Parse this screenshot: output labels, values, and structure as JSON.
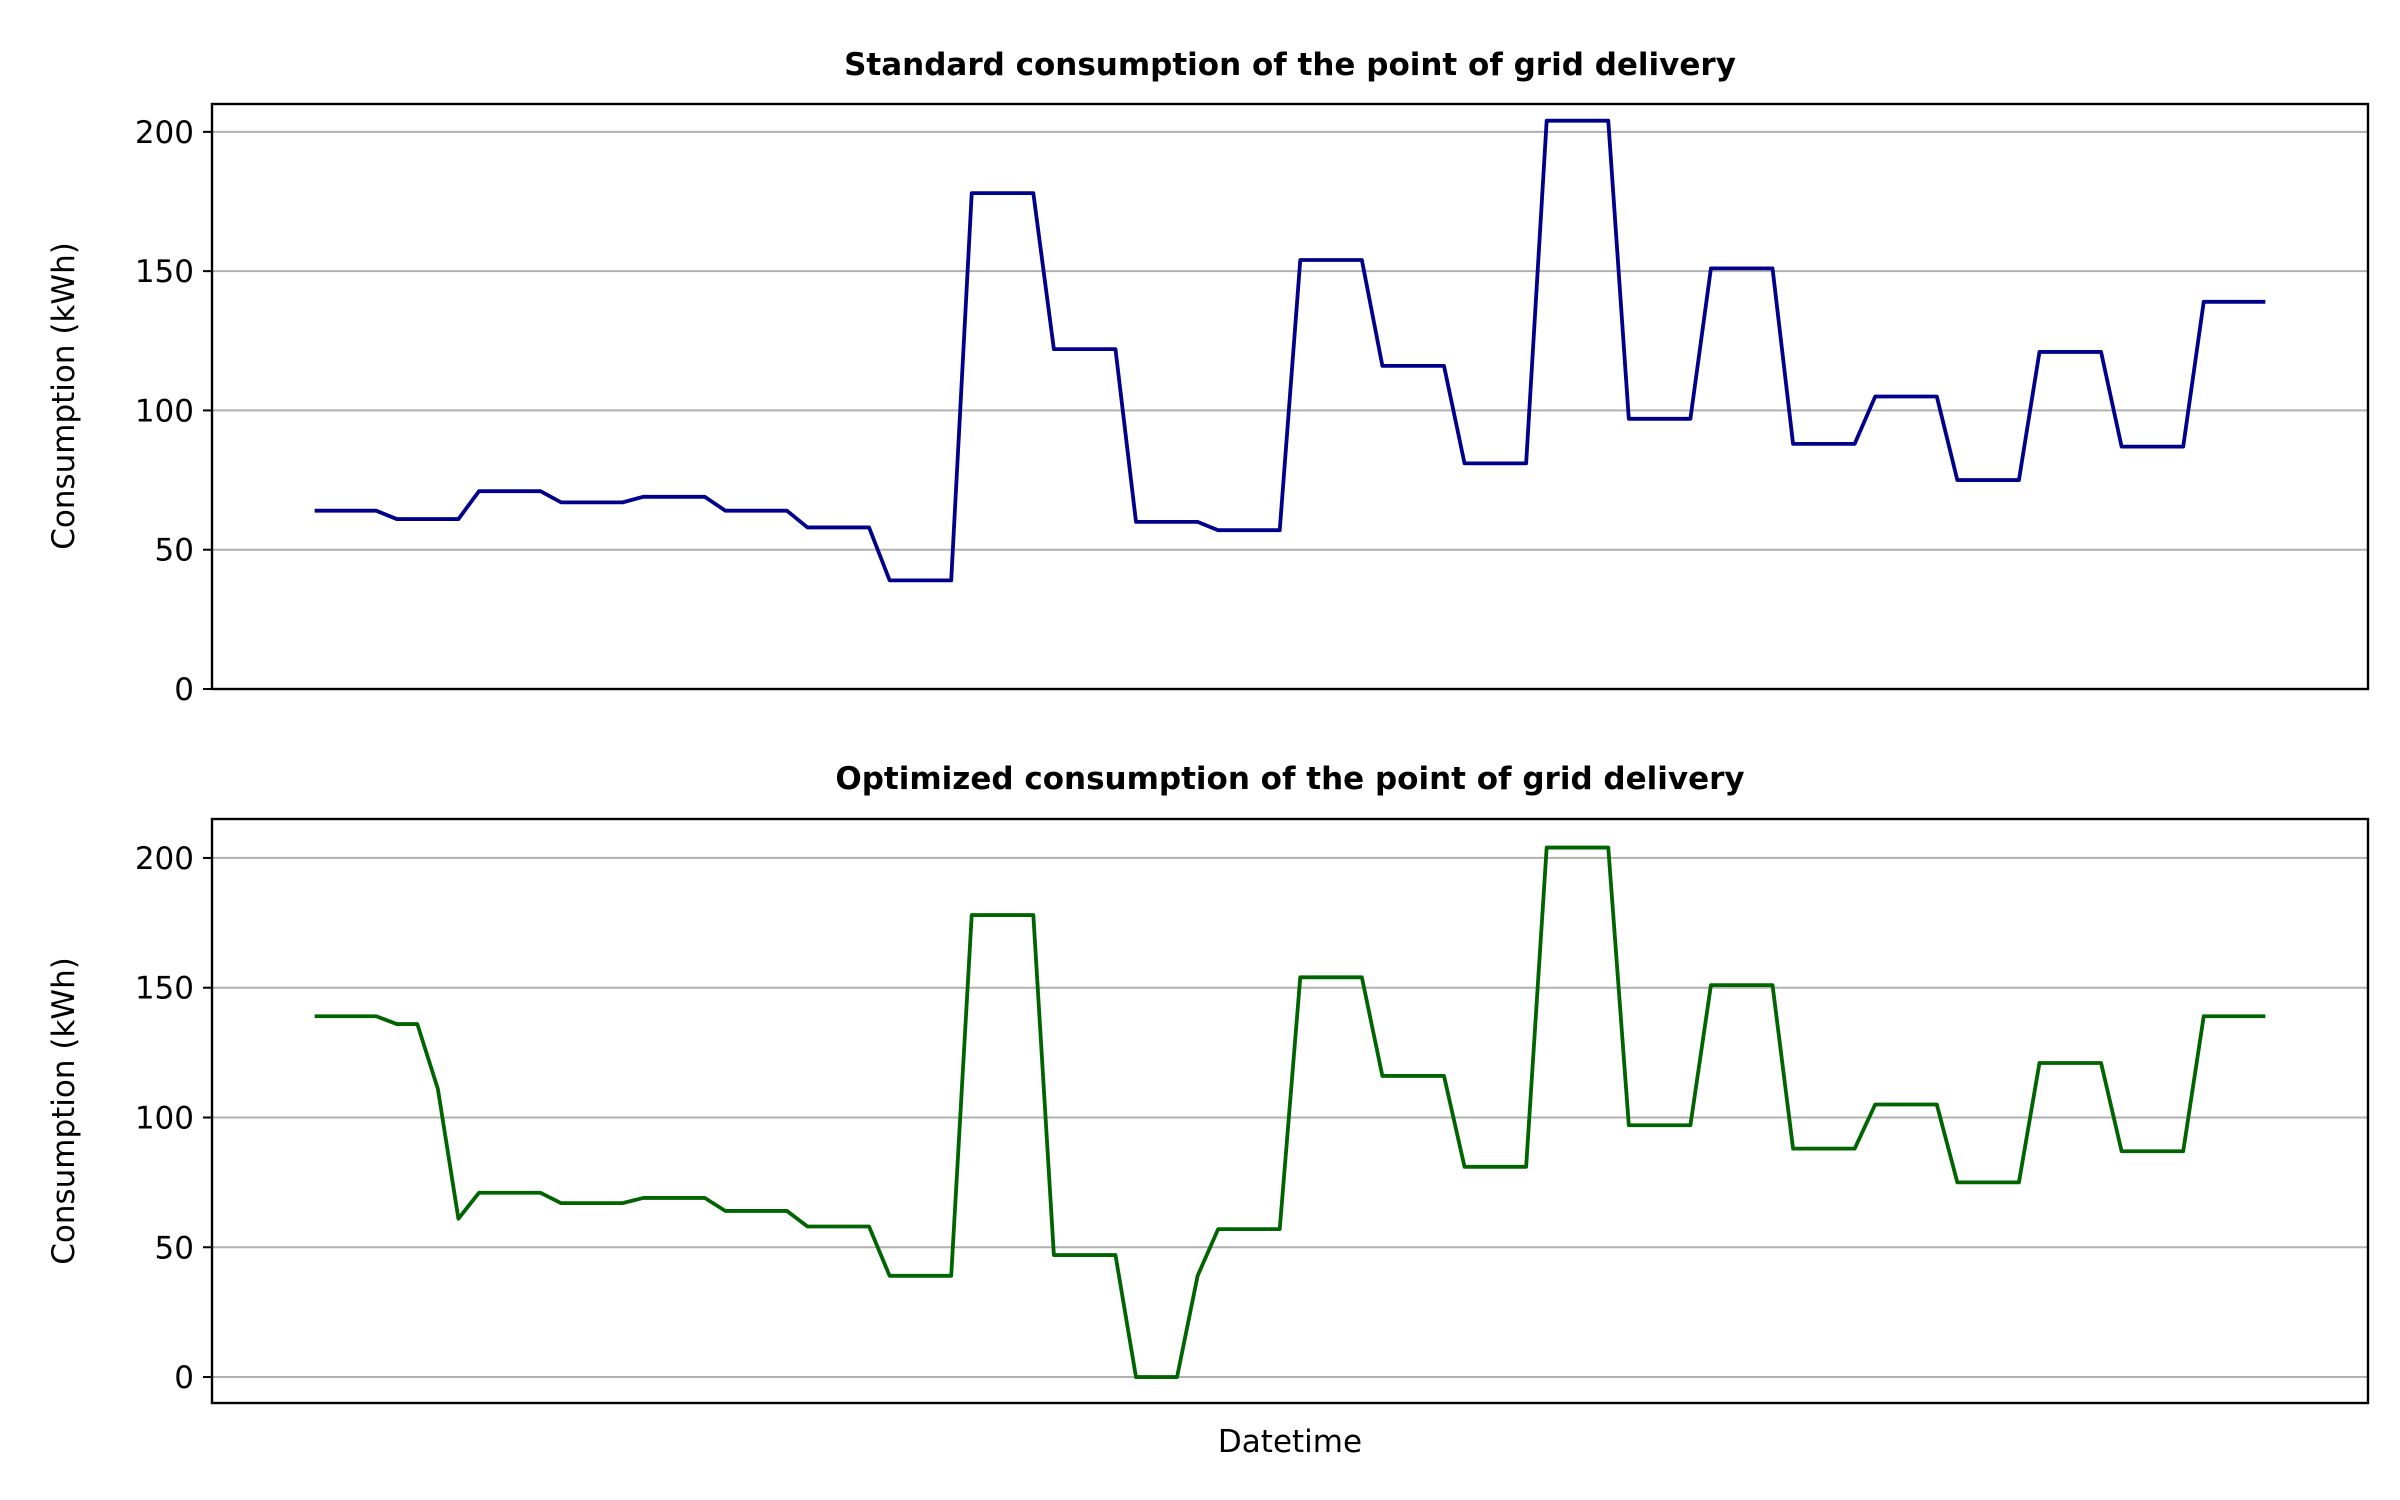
{
  "chart_data": [
    {
      "type": "line",
      "title": "Standard consumption of the point of grid delivery",
      "xlabel": "",
      "ylabel": "Consumption (kWh)",
      "xlim": [
        -5,
        100
      ],
      "ylim": [
        0,
        210
      ],
      "yticks": [
        0,
        50,
        100,
        150,
        200
      ],
      "grid": "y",
      "x": [
        0,
        1,
        2,
        3,
        4,
        5,
        6,
        7,
        8,
        9,
        10,
        11,
        12,
        13,
        14,
        15,
        16,
        17,
        18,
        19,
        20,
        21,
        22,
        23,
        24,
        25,
        26,
        27,
        28,
        29,
        30,
        31,
        32,
        33,
        34,
        35,
        36,
        37,
        38,
        39,
        40,
        41,
        42,
        43,
        44,
        45,
        46,
        47,
        48,
        49,
        50,
        51,
        52,
        53,
        54,
        55,
        56,
        57,
        58,
        59,
        60,
        61,
        62,
        63,
        64,
        65,
        66,
        67,
        68,
        69,
        70,
        71,
        72,
        73,
        74,
        75,
        76,
        77,
        78,
        79,
        80,
        81,
        82,
        83,
        84,
        85,
        86,
        87,
        88,
        89,
        90,
        91,
        92,
        93,
        94,
        95
      ],
      "series": [
        {
          "color": "#00008b",
          "values": [
            64,
            64,
            64,
            64,
            61,
            61,
            61,
            61,
            71,
            71,
            71,
            71,
            67,
            67,
            67,
            67,
            69,
            69,
            69,
            69,
            64,
            64,
            64,
            64,
            58,
            58,
            58,
            58,
            39,
            39,
            39,
            39,
            178,
            178,
            178,
            178,
            122,
            122,
            122,
            122,
            60,
            60,
            60,
            60,
            57,
            57,
            57,
            57,
            154,
            154,
            154,
            154,
            116,
            116,
            116,
            116,
            81,
            81,
            81,
            81,
            204,
            204,
            204,
            204,
            97,
            97,
            97,
            97,
            151,
            151,
            151,
            151,
            88,
            88,
            88,
            88,
            105,
            105,
            105,
            105,
            75,
            75,
            75,
            75,
            121,
            121,
            121,
            121,
            87,
            87,
            87,
            87,
            139,
            139,
            139,
            139
          ]
        }
      ]
    },
    {
      "type": "line",
      "title": "Optimized consumption of the point of grid delivery",
      "xlabel": "Datetime",
      "ylabel": "Consumption (kWh)",
      "xlim": [
        -5,
        100
      ],
      "ylim": [
        -10,
        215
      ],
      "yticks": [
        0,
        50,
        100,
        150,
        200
      ],
      "grid": "y",
      "x": [
        0,
        1,
        2,
        3,
        4,
        5,
        6,
        7,
        8,
        9,
        10,
        11,
        12,
        13,
        14,
        15,
        16,
        17,
        18,
        19,
        20,
        21,
        22,
        23,
        24,
        25,
        26,
        27,
        28,
        29,
        30,
        31,
        32,
        33,
        34,
        35,
        36,
        37,
        38,
        39,
        40,
        41,
        42,
        43,
        44,
        45,
        46,
        47,
        48,
        49,
        50,
        51,
        52,
        53,
        54,
        55,
        56,
        57,
        58,
        59,
        60,
        61,
        62,
        63,
        64,
        65,
        66,
        67,
        68,
        69,
        70,
        71,
        72,
        73,
        74,
        75,
        76,
        77,
        78,
        79,
        80,
        81,
        82,
        83,
        84,
        85,
        86,
        87,
        88,
        89,
        90,
        91,
        92,
        93,
        94,
        95
      ],
      "series": [
        {
          "color": "#006400",
          "values": [
            139,
            139,
            139,
            139,
            136,
            136,
            111,
            61,
            71,
            71,
            71,
            71,
            67,
            67,
            67,
            67,
            69,
            69,
            69,
            69,
            64,
            64,
            64,
            64,
            58,
            58,
            58,
            58,
            39,
            39,
            39,
            39,
            178,
            178,
            178,
            178,
            47,
            47,
            47,
            47,
            0,
            0,
            0,
            39,
            57,
            57,
            57,
            57,
            154,
            154,
            154,
            154,
            116,
            116,
            116,
            116,
            81,
            81,
            81,
            81,
            204,
            204,
            204,
            204,
            97,
            97,
            97,
            97,
            151,
            151,
            151,
            151,
            88,
            88,
            88,
            88,
            105,
            105,
            105,
            105,
            75,
            75,
            75,
            75,
            121,
            121,
            121,
            121,
            87,
            87,
            87,
            87,
            139,
            139,
            139,
            139
          ]
        }
      ]
    }
  ]
}
